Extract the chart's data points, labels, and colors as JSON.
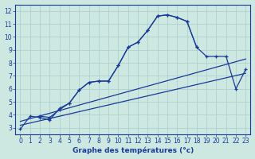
{
  "xlabel": "Graphe des températures (°c)",
  "bg_color": "#cce8e0",
  "grid_color": "#aacccc",
  "line_color": "#1a3a9a",
  "xlim": [
    -0.5,
    23.5
  ],
  "ylim": [
    2.5,
    12.5
  ],
  "xticks": [
    0,
    1,
    2,
    3,
    4,
    5,
    6,
    7,
    8,
    9,
    10,
    11,
    12,
    13,
    14,
    15,
    16,
    17,
    18,
    19,
    20,
    21,
    22,
    23
  ],
  "yticks": [
    3,
    4,
    5,
    6,
    7,
    8,
    9,
    10,
    11,
    12
  ],
  "series1_x": [
    0,
    1,
    2,
    3,
    4,
    5,
    6,
    7,
    8,
    9,
    10,
    11,
    12,
    13,
    14,
    15,
    16,
    17,
    18
  ],
  "series1_y": [
    2.9,
    3.9,
    3.8,
    3.6,
    4.5,
    4.9,
    5.9,
    6.5,
    6.6,
    6.6,
    7.8,
    9.2,
    9.6,
    10.5,
    11.6,
    11.7,
    11.5,
    11.2,
    9.2
  ],
  "series2_x": [
    2,
    3,
    4,
    5,
    6,
    7,
    8,
    9,
    10,
    11,
    12,
    13,
    14,
    15,
    16,
    17,
    18,
    19,
    20,
    21,
    22,
    23
  ],
  "series2_y": [
    3.9,
    3.8,
    4.4,
    4.9,
    5.9,
    6.5,
    6.6,
    6.6,
    7.8,
    9.2,
    9.6,
    10.5,
    11.6,
    11.7,
    11.5,
    11.2,
    9.2,
    8.5,
    8.5,
    8.5,
    6.0,
    7.5
  ],
  "line3_x": [
    0,
    23
  ],
  "line3_y": [
    3.5,
    8.3
  ],
  "line4_x": [
    0,
    23
  ],
  "line4_y": [
    3.2,
    7.2
  ],
  "xlabel_fontsize": 6.5,
  "tick_fontsize": 5.5
}
